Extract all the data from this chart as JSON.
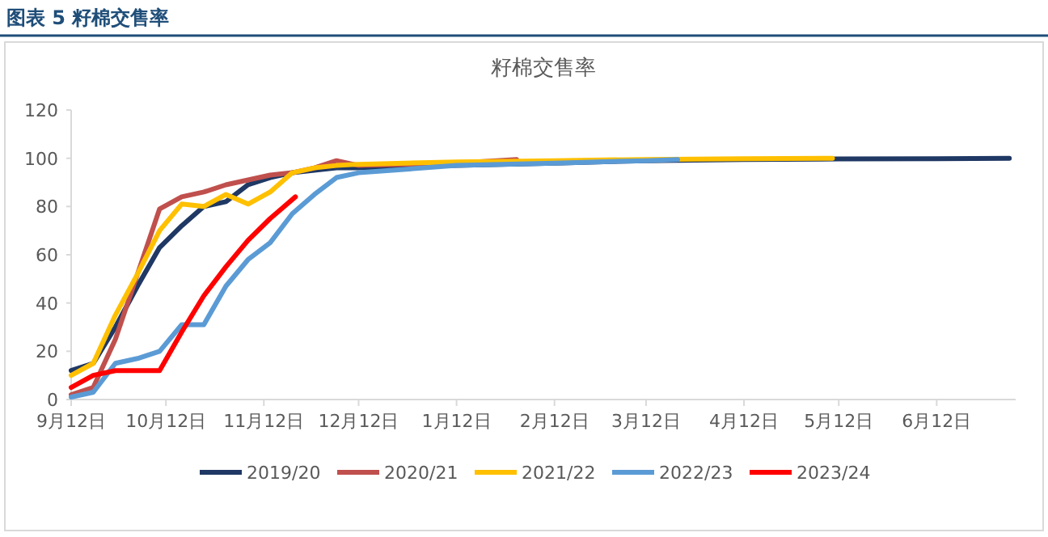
{
  "chart_data": {
    "type": "line",
    "title": "图表 5  籽棉交售率",
    "subtitle": "籽棉交售率",
    "xlim": [
      "2019-09-12",
      "2020-07-07"
    ],
    "xticks": [
      {
        "value": "2019-09-12",
        "label": "9月12日"
      },
      {
        "value": "2019-10-12",
        "label": "10月12日"
      },
      {
        "value": "2019-11-12",
        "label": "11月12日"
      },
      {
        "value": "2019-12-12",
        "label": "12月12日"
      },
      {
        "value": "2020-01-12",
        "label": "1月12日"
      },
      {
        "value": "2020-02-12",
        "label": "2月12日"
      },
      {
        "value": "2020-03-12",
        "label": "3月12日"
      },
      {
        "value": "2020-04-12",
        "label": "4月12日"
      },
      {
        "value": "2020-05-12",
        "label": "5月12日"
      },
      {
        "value": "2020-06-12",
        "label": "6月12日"
      }
    ],
    "ylim": [
      0,
      120
    ],
    "yticks": [
      0,
      20,
      40,
      60,
      80,
      100,
      120
    ],
    "grid": false,
    "legend": "bottom",
    "marker": "none",
    "line_style": "solid",
    "series": [
      {
        "name": "2019/20",
        "color": "#1f3864",
        "x": [
          "2019-09-12",
          "2019-09-19",
          "2019-09-26",
          "2019-10-03",
          "2019-10-10",
          "2019-10-17",
          "2019-10-24",
          "2019-10-31",
          "2019-11-07",
          "2019-11-14",
          "2019-11-21",
          "2019-11-28",
          "2019-12-05",
          "2019-12-12",
          "2020-01-12",
          "2020-02-12",
          "2020-03-12",
          "2020-04-12",
          "2020-05-12",
          "2020-06-12",
          "2020-07-05"
        ],
        "values": [
          12,
          15,
          30,
          47,
          63,
          72,
          80,
          82,
          89,
          92,
          94,
          95,
          96,
          96,
          97,
          98,
          99,
          99.5,
          99.7,
          99.8,
          100
        ]
      },
      {
        "name": "2020/21",
        "color": "#c0504d",
        "x": [
          "2019-09-12",
          "2019-09-19",
          "2019-09-26",
          "2019-10-03",
          "2019-10-10",
          "2019-10-17",
          "2019-10-24",
          "2019-10-31",
          "2019-11-07",
          "2019-11-14",
          "2019-11-21",
          "2019-11-28",
          "2019-12-05",
          "2019-12-12",
          "2020-01-12",
          "2020-01-31"
        ],
        "values": [
          2,
          5,
          25,
          52,
          79,
          84,
          86,
          89,
          91,
          93,
          94,
          96,
          99,
          97,
          98,
          99.5
        ]
      },
      {
        "name": "2021/22",
        "color": "#ffc000",
        "x": [
          "2019-09-12",
          "2019-09-19",
          "2019-09-26",
          "2019-10-03",
          "2019-10-10",
          "2019-10-17",
          "2019-10-24",
          "2019-10-31",
          "2019-11-07",
          "2019-11-14",
          "2019-11-21",
          "2019-11-28",
          "2019-12-05",
          "2019-12-12",
          "2020-01-12",
          "2020-02-12",
          "2020-03-12",
          "2020-04-12",
          "2020-05-10"
        ],
        "values": [
          10,
          15,
          35,
          52,
          70,
          81,
          80,
          85,
          81,
          86,
          94,
          96,
          97,
          97.5,
          98.5,
          99,
          99.5,
          99.8,
          100
        ]
      },
      {
        "name": "2022/23",
        "color": "#5b9bd5",
        "x": [
          "2019-09-12",
          "2019-09-19",
          "2019-09-26",
          "2019-10-03",
          "2019-10-10",
          "2019-10-17",
          "2019-10-24",
          "2019-10-31",
          "2019-11-07",
          "2019-11-14",
          "2019-11-21",
          "2019-11-28",
          "2019-12-05",
          "2019-12-12",
          "2020-01-12",
          "2020-02-12",
          "2020-03-12",
          "2020-03-22"
        ],
        "values": [
          1,
          3,
          15,
          17,
          20,
          31,
          31,
          47,
          58,
          65,
          77,
          85,
          92,
          94,
          97,
          98,
          99,
          99.5
        ]
      },
      {
        "name": "2023/24",
        "color": "#ff0000",
        "x": [
          "2019-09-12",
          "2019-09-19",
          "2019-09-26",
          "2019-10-03",
          "2019-10-10",
          "2019-10-17",
          "2019-10-24",
          "2019-10-31",
          "2019-11-07",
          "2019-11-14",
          "2019-11-22"
        ],
        "values": [
          5,
          10,
          12,
          12,
          12,
          28,
          43,
          55,
          66,
          75,
          84
        ]
      }
    ]
  }
}
